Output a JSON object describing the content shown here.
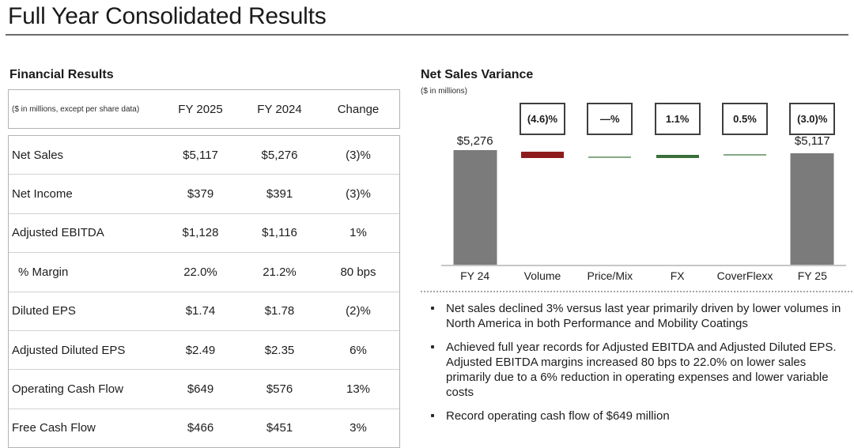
{
  "title": "Full Year Consolidated Results",
  "colors": {
    "bar_gray": "#7b7b7b",
    "negative_red": "#8e1c1c",
    "positive_green": "#3a6e3a",
    "neutral_green": "#85a985"
  },
  "financial_results": {
    "heading": "Financial Results",
    "table": {
      "note": "($ in millions, except per share data)",
      "columns": [
        "FY 2025",
        "FY 2024",
        "Change"
      ],
      "rows": [
        {
          "label": "Net Sales",
          "fy2025": "$5,117",
          "fy2024": "$5,276",
          "change": "(3)%"
        },
        {
          "label": "Net Income",
          "fy2025": "$379",
          "fy2024": "$391",
          "change": "(3)%"
        },
        {
          "label": "Adjusted EBITDA",
          "fy2025": "$1,128",
          "fy2024": "$1,116",
          "change": "1%"
        },
        {
          "label": "% Margin",
          "fy2025": "22.0%",
          "fy2024": "21.2%",
          "change": "80 bps"
        },
        {
          "label": "Diluted EPS",
          "fy2025": "$1.74",
          "fy2024": "$1.78",
          "change": "(2)%"
        },
        {
          "label": "Adjusted Diluted EPS",
          "fy2025": "$2.49",
          "fy2024": "$2.35",
          "change": "6%"
        },
        {
          "label": "Operating Cash Flow",
          "fy2025": "$649",
          "fy2024": "$576",
          "change": "13%"
        },
        {
          "label": "Free Cash Flow",
          "fy2025": "$466",
          "fy2024": "$451",
          "change": "3%"
        }
      ]
    }
  },
  "net_sales_variance": {
    "heading": "Net Sales Variance",
    "subnote": "($ in millions)"
  },
  "chart_data": {
    "type": "waterfall",
    "title": "Net Sales Variance",
    "unit_note": "($ in millions)",
    "categories": [
      "FY 24",
      "Volume",
      "Price/Mix",
      "FX",
      "CoverFlexx",
      "FY 25"
    ],
    "bars": {
      "fy24": {
        "category": "FY 24",
        "value": 5276,
        "display": "$5,276"
      },
      "fy25": {
        "category": "FY 25",
        "value": 5117,
        "display": "$5,117"
      }
    },
    "variances": [
      {
        "category": "Volume",
        "pct_label": "(4.6)%",
        "direction": "negative"
      },
      {
        "category": "Price/Mix",
        "pct_label": "—%",
        "direction": "neutral"
      },
      {
        "category": "FX",
        "pct_label": "1.1%",
        "direction": "positive"
      },
      {
        "category": "CoverFlexx",
        "pct_label": "0.5%",
        "direction": "positive"
      },
      {
        "category": "FY 25",
        "pct_label": "(3.0)%",
        "direction": "negative"
      }
    ],
    "ylim": [
      0,
      5276
    ],
    "legend": "none",
    "grid": false
  },
  "bullets": {
    "items": [
      "Net sales declined 3% versus last year primarily driven by lower volumes in North America in both Performance and Mobility Coatings",
      "Achieved full year records for Adjusted EBITDA and Adjusted Diluted EPS. Adjusted EBITDA margins increased 80 bps to 22.0% on lower sales primarily due to a 6% reduction in operating expenses and lower variable costs",
      "Record operating cash flow of $649 million"
    ]
  }
}
